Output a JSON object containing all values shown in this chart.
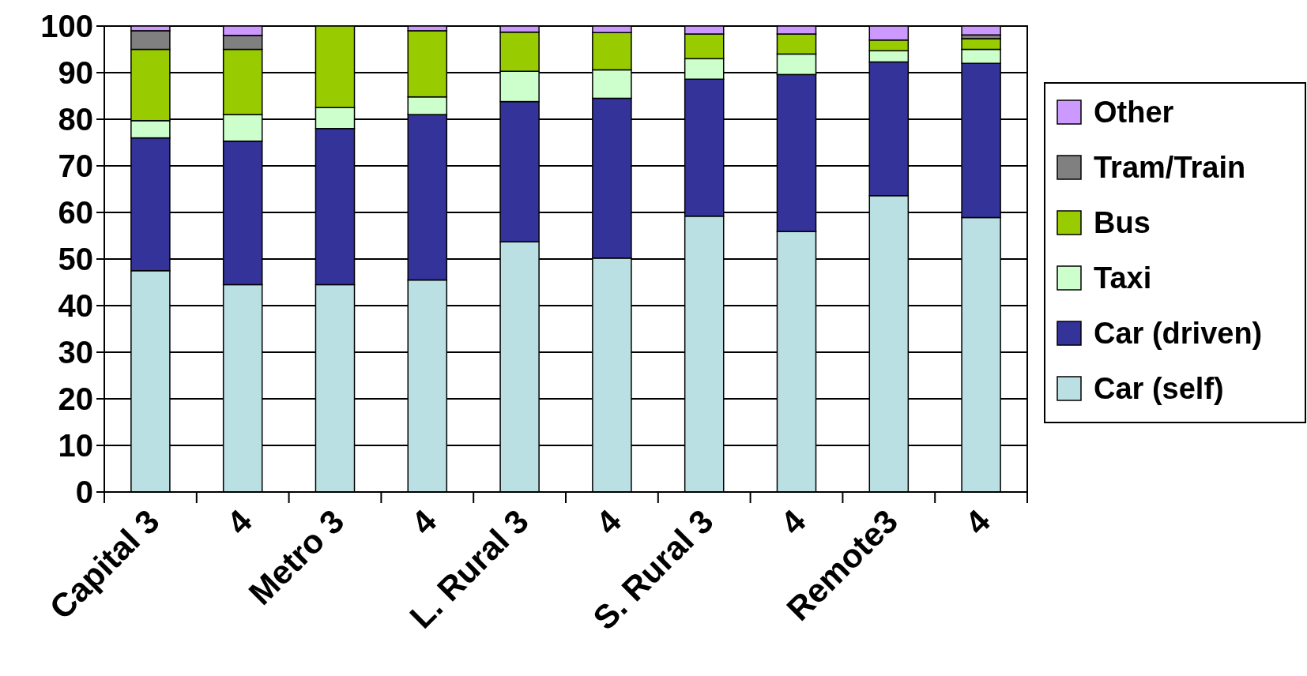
{
  "chart_data": {
    "type": "bar",
    "stacked": true,
    "categories": [
      "Capital 3",
      "4",
      "Metro 3",
      "4",
      "L. Rural 3",
      "4",
      "S. Rural 3",
      "4",
      "Remote3",
      "4"
    ],
    "series": [
      {
        "name": "Car (self)",
        "color": "#bbe0e3",
        "values": [
          47.5,
          44.5,
          44.5,
          45.5,
          53.7,
          50.2,
          59.2,
          55.9,
          63.6,
          58.9
        ]
      },
      {
        "name": "Car (driven)",
        "color": "#333399",
        "values": [
          28.5,
          30.8,
          33.5,
          35.5,
          30.1,
          34.3,
          29.4,
          33.7,
          28.7,
          33.1
        ]
      },
      {
        "name": "Taxi",
        "color": "#ccffcc",
        "values": [
          3.7,
          5.7,
          4.5,
          3.8,
          6.5,
          6.1,
          4.4,
          4.4,
          2.4,
          3
        ]
      },
      {
        "name": "Bus",
        "color": "#99cc00",
        "values": [
          15.3,
          14,
          17.5,
          14.2,
          8.4,
          8,
          5.3,
          4.3,
          2.3,
          2.3
        ]
      },
      {
        "name": "Tram/Train",
        "color": "#808080",
        "values": [
          4,
          3,
          0,
          0,
          0,
          0,
          0,
          0,
          0,
          0.8
        ]
      },
      {
        "name": "Other",
        "color": "#cc99ff",
        "values": [
          1,
          2,
          0,
          1,
          1.3,
          1.4,
          1.7,
          1.7,
          3,
          1.9
        ]
      }
    ],
    "ylim": [
      0,
      100
    ],
    "yticks": [
      0,
      10,
      20,
      30,
      40,
      50,
      60,
      70,
      80,
      90,
      100
    ],
    "grid": "y",
    "legend": "right"
  }
}
